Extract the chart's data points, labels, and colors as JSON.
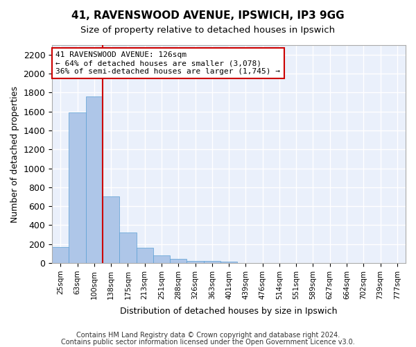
{
  "title1": "41, RAVENSWOOD AVENUE, IPSWICH, IP3 9GG",
  "title2": "Size of property relative to detached houses in Ipswich",
  "xlabel": "Distribution of detached houses by size in Ipswich",
  "ylabel": "Number of detached properties",
  "bar_values": [
    170,
    1590,
    1760,
    700,
    320,
    160,
    80,
    45,
    25,
    20,
    15,
    0,
    0,
    0,
    0,
    0,
    0,
    0,
    0,
    0
  ],
  "categories": [
    "25sqm",
    "63sqm",
    "100sqm",
    "138sqm",
    "175sqm",
    "213sqm",
    "251sqm",
    "288sqm",
    "326sqm",
    "363sqm",
    "401sqm",
    "439sqm",
    "476sqm",
    "514sqm",
    "551sqm",
    "589sqm",
    "627sqm",
    "664sqm",
    "702sqm",
    "739sqm"
  ],
  "bar_color": "#aec6e8",
  "bar_edge_color": "#5a9fd4",
  "bar_width": 1.0,
  "vline_x": 2.5,
  "vline_color": "#cc0000",
  "annotation_title": "41 RAVENSWOOD AVENUE: 126sqm",
  "annotation_line1": "← 64% of detached houses are smaller (3,078)",
  "annotation_line2": "36% of semi-detached houses are larger (1,745) →",
  "annotation_box_color": "#cc0000",
  "background_color": "#eaf0fb",
  "grid_color": "#ffffff",
  "ylim": [
    0,
    2300
  ],
  "yticks": [
    0,
    200,
    400,
    600,
    800,
    1000,
    1200,
    1400,
    1600,
    1800,
    2000,
    2200
  ],
  "extra_xtick_label": "777sqm",
  "footer1": "Contains HM Land Registry data © Crown copyright and database right 2024.",
  "footer2": "Contains public sector information licensed under the Open Government Licence v3.0."
}
